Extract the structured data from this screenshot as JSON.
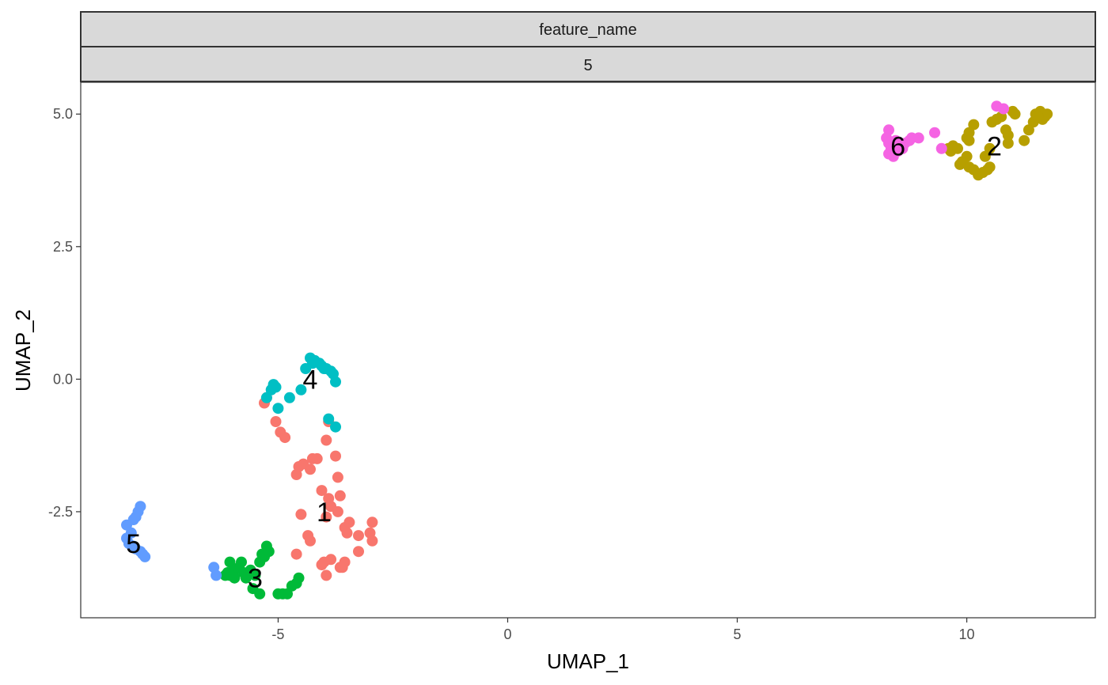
{
  "chart_data": {
    "type": "scatter",
    "facet_strips": [
      "feature_name",
      "5"
    ],
    "xlabel": "UMAP_1",
    "ylabel": "UMAP_2",
    "xlim": [
      -9.3,
      12.8
    ],
    "ylim": [
      -4.5,
      5.6
    ],
    "xticks": [
      -5,
      0,
      5,
      10
    ],
    "xtick_labels": [
      "-5",
      "0",
      "5",
      "10"
    ],
    "yticks": [
      -2.5,
      0.0,
      2.5,
      5.0
    ],
    "ytick_labels": [
      "-2.5",
      "0.0",
      "2.5",
      "5.0"
    ],
    "grid": false,
    "legend": "none",
    "series": [
      {
        "name": "1",
        "color": "#F8766D",
        "label_pos": [
          -4.0,
          -2.5
        ],
        "points": [
          [
            -5.3,
            -0.45
          ],
          [
            -5.25,
            -0.35
          ],
          [
            -5.05,
            -0.8
          ],
          [
            -4.95,
            -1.0
          ],
          [
            -4.85,
            -1.1
          ],
          [
            -3.95,
            -1.15
          ],
          [
            -3.9,
            -0.8
          ],
          [
            -3.75,
            -1.45
          ],
          [
            -4.15,
            -1.5
          ],
          [
            -4.25,
            -1.5
          ],
          [
            -4.45,
            -1.6
          ],
          [
            -4.3,
            -1.7
          ],
          [
            -4.6,
            -1.8
          ],
          [
            -4.55,
            -1.65
          ],
          [
            -3.7,
            -1.85
          ],
          [
            -4.05,
            -2.1
          ],
          [
            -3.9,
            -2.25
          ],
          [
            -3.65,
            -2.2
          ],
          [
            -3.85,
            -2.4
          ],
          [
            -3.7,
            -2.5
          ],
          [
            -3.95,
            -2.6
          ],
          [
            -4.5,
            -2.55
          ],
          [
            -3.55,
            -2.8
          ],
          [
            -3.45,
            -2.7
          ],
          [
            -3.5,
            -2.9
          ],
          [
            -3.25,
            -2.95
          ],
          [
            -2.95,
            -2.7
          ],
          [
            -3.0,
            -2.9
          ],
          [
            -2.95,
            -3.05
          ],
          [
            -3.25,
            -3.25
          ],
          [
            -3.55,
            -3.45
          ],
          [
            -3.65,
            -3.55
          ],
          [
            -3.85,
            -3.4
          ],
          [
            -4.05,
            -3.5
          ],
          [
            -3.95,
            -3.7
          ],
          [
            -4.0,
            -3.45
          ],
          [
            -4.35,
            -2.95
          ],
          [
            -4.3,
            -3.05
          ],
          [
            -4.6,
            -3.3
          ],
          [
            -3.6,
            -3.55
          ]
        ]
      },
      {
        "name": "2",
        "color": "#B79F00",
        "label_pos": [
          10.6,
          4.4
        ],
        "points": [
          [
            9.6,
            4.35
          ],
          [
            9.65,
            4.3
          ],
          [
            9.7,
            4.4
          ],
          [
            9.8,
            4.35
          ],
          [
            10.0,
            4.55
          ],
          [
            10.05,
            4.65
          ],
          [
            10.15,
            4.8
          ],
          [
            10.0,
            4.2
          ],
          [
            9.9,
            4.1
          ],
          [
            9.85,
            4.05
          ],
          [
            10.05,
            4.0
          ],
          [
            10.15,
            3.95
          ],
          [
            10.25,
            3.85
          ],
          [
            10.35,
            3.9
          ],
          [
            10.45,
            3.95
          ],
          [
            10.5,
            4.0
          ],
          [
            10.4,
            4.2
          ],
          [
            10.5,
            4.35
          ],
          [
            10.55,
            4.85
          ],
          [
            10.65,
            4.9
          ],
          [
            10.75,
            4.95
          ],
          [
            10.85,
            4.7
          ],
          [
            10.9,
            4.6
          ],
          [
            10.9,
            4.45
          ],
          [
            11.0,
            5.05
          ],
          [
            11.05,
            5.0
          ],
          [
            11.25,
            4.5
          ],
          [
            11.35,
            4.7
          ],
          [
            11.45,
            4.85
          ],
          [
            11.5,
            5.0
          ],
          [
            11.6,
            5.05
          ],
          [
            11.65,
            4.9
          ],
          [
            11.7,
            4.95
          ],
          [
            11.75,
            5.0
          ],
          [
            10.05,
            4.5
          ],
          [
            11.55,
            4.95
          ]
        ]
      },
      {
        "name": "3",
        "color": "#00BA38",
        "label_pos": [
          -5.5,
          -3.75
        ],
        "points": [
          [
            -6.1,
            -3.65
          ],
          [
            -6.15,
            -3.7
          ],
          [
            -6.05,
            -3.45
          ],
          [
            -5.95,
            -3.6
          ],
          [
            -5.85,
            -3.55
          ],
          [
            -5.8,
            -3.45
          ],
          [
            -5.75,
            -3.65
          ],
          [
            -5.7,
            -3.75
          ],
          [
            -5.6,
            -3.6
          ],
          [
            -5.5,
            -3.7
          ],
          [
            -5.4,
            -3.45
          ],
          [
            -5.35,
            -3.3
          ],
          [
            -5.3,
            -3.35
          ],
          [
            -5.25,
            -3.15
          ],
          [
            -5.2,
            -3.25
          ],
          [
            -5.55,
            -3.95
          ],
          [
            -5.4,
            -4.05
          ],
          [
            -5.0,
            -4.05
          ],
          [
            -4.9,
            -4.05
          ],
          [
            -4.8,
            -4.05
          ],
          [
            -4.7,
            -3.9
          ],
          [
            -4.6,
            -3.85
          ],
          [
            -4.55,
            -3.75
          ],
          [
            -6.05,
            -3.7
          ],
          [
            -5.95,
            -3.75
          ]
        ]
      },
      {
        "name": "4",
        "color": "#00BFC4",
        "label_pos": [
          -4.3,
          0.0
        ],
        "points": [
          [
            -4.3,
            0.4
          ],
          [
            -4.2,
            0.35
          ],
          [
            -4.1,
            0.3
          ],
          [
            -4.05,
            0.25
          ],
          [
            -3.95,
            0.2
          ],
          [
            -3.85,
            0.15
          ],
          [
            -3.8,
            0.1
          ],
          [
            -3.75,
            -0.05
          ],
          [
            -4.4,
            0.2
          ],
          [
            -4.5,
            -0.2
          ],
          [
            -4.75,
            -0.35
          ],
          [
            -5.0,
            -0.55
          ],
          [
            -5.05,
            -0.15
          ],
          [
            -5.1,
            -0.1
          ],
          [
            -5.15,
            -0.2
          ],
          [
            -5.25,
            -0.35
          ],
          [
            -3.9,
            -0.75
          ],
          [
            -3.75,
            -0.9
          ],
          [
            -4.25,
            0.3
          ],
          [
            -4.0,
            0.2
          ]
        ]
      },
      {
        "name": "5",
        "color": "#619CFF",
        "label_pos": [
          -8.15,
          -3.1
        ],
        "points": [
          [
            -8.0,
            -2.4
          ],
          [
            -8.05,
            -2.5
          ],
          [
            -8.1,
            -2.6
          ],
          [
            -8.15,
            -2.65
          ],
          [
            -8.3,
            -2.75
          ],
          [
            -8.2,
            -2.9
          ],
          [
            -8.3,
            -3.0
          ],
          [
            -8.25,
            -3.1
          ],
          [
            -8.15,
            -3.15
          ],
          [
            -8.1,
            -3.2
          ],
          [
            -8.0,
            -3.25
          ],
          [
            -7.95,
            -3.3
          ],
          [
            -7.9,
            -3.35
          ],
          [
            -6.4,
            -3.55
          ],
          [
            -6.35,
            -3.7
          ]
        ]
      },
      {
        "name": "6",
        "color": "#F564E3",
        "label_pos": [
          8.5,
          4.4
        ],
        "points": [
          [
            8.3,
            4.7
          ],
          [
            8.25,
            4.55
          ],
          [
            8.3,
            4.45
          ],
          [
            8.35,
            4.35
          ],
          [
            8.3,
            4.25
          ],
          [
            8.4,
            4.2
          ],
          [
            8.5,
            4.3
          ],
          [
            8.55,
            4.4
          ],
          [
            8.65,
            4.45
          ],
          [
            8.75,
            4.5
          ],
          [
            8.8,
            4.55
          ],
          [
            8.95,
            4.55
          ],
          [
            9.3,
            4.65
          ],
          [
            9.45,
            4.35
          ],
          [
            10.65,
            5.15
          ],
          [
            10.8,
            5.1
          ],
          [
            8.45,
            4.5
          ],
          [
            8.6,
            4.35
          ]
        ]
      }
    ]
  }
}
